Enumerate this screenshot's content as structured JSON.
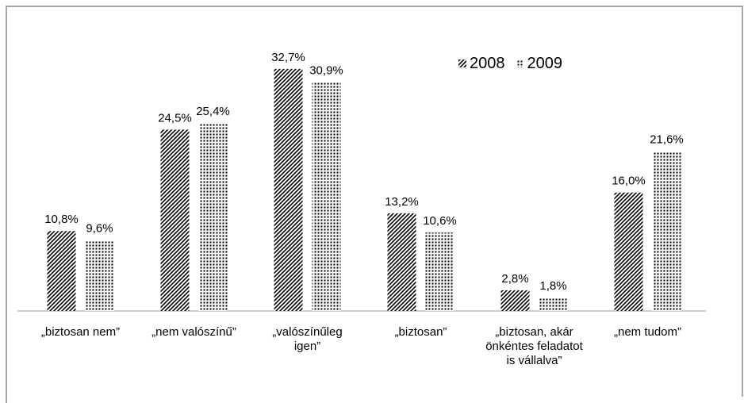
{
  "chart_data": {
    "type": "bar",
    "categories": [
      "„biztosan nem”",
      "„nem valószínű”",
      "„valószínűleg igen”",
      "„biztosan”",
      "„biztosan, akár önkéntes feladatot is vállalva”",
      "„nem tudom”"
    ],
    "series": [
      {
        "name": "2008",
        "color": "#000000",
        "pattern": "hatch",
        "values": [
          10.8,
          24.5,
          32.7,
          13.2,
          2.8,
          16.0
        ],
        "value_labels": [
          "10,8%",
          "24,5%",
          "32,7%",
          "13,2%",
          "2,8%",
          "16,0%"
        ]
      },
      {
        "name": "2009",
        "color": "#000000",
        "pattern": "dots",
        "values": [
          9.6,
          25.4,
          30.9,
          10.6,
          1.8,
          21.6
        ],
        "value_labels": [
          "9,6%",
          "25,4%",
          "30,9%",
          "10,6%",
          "1,8%",
          "21,6%"
        ]
      }
    ],
    "legend": "top-right"
  }
}
